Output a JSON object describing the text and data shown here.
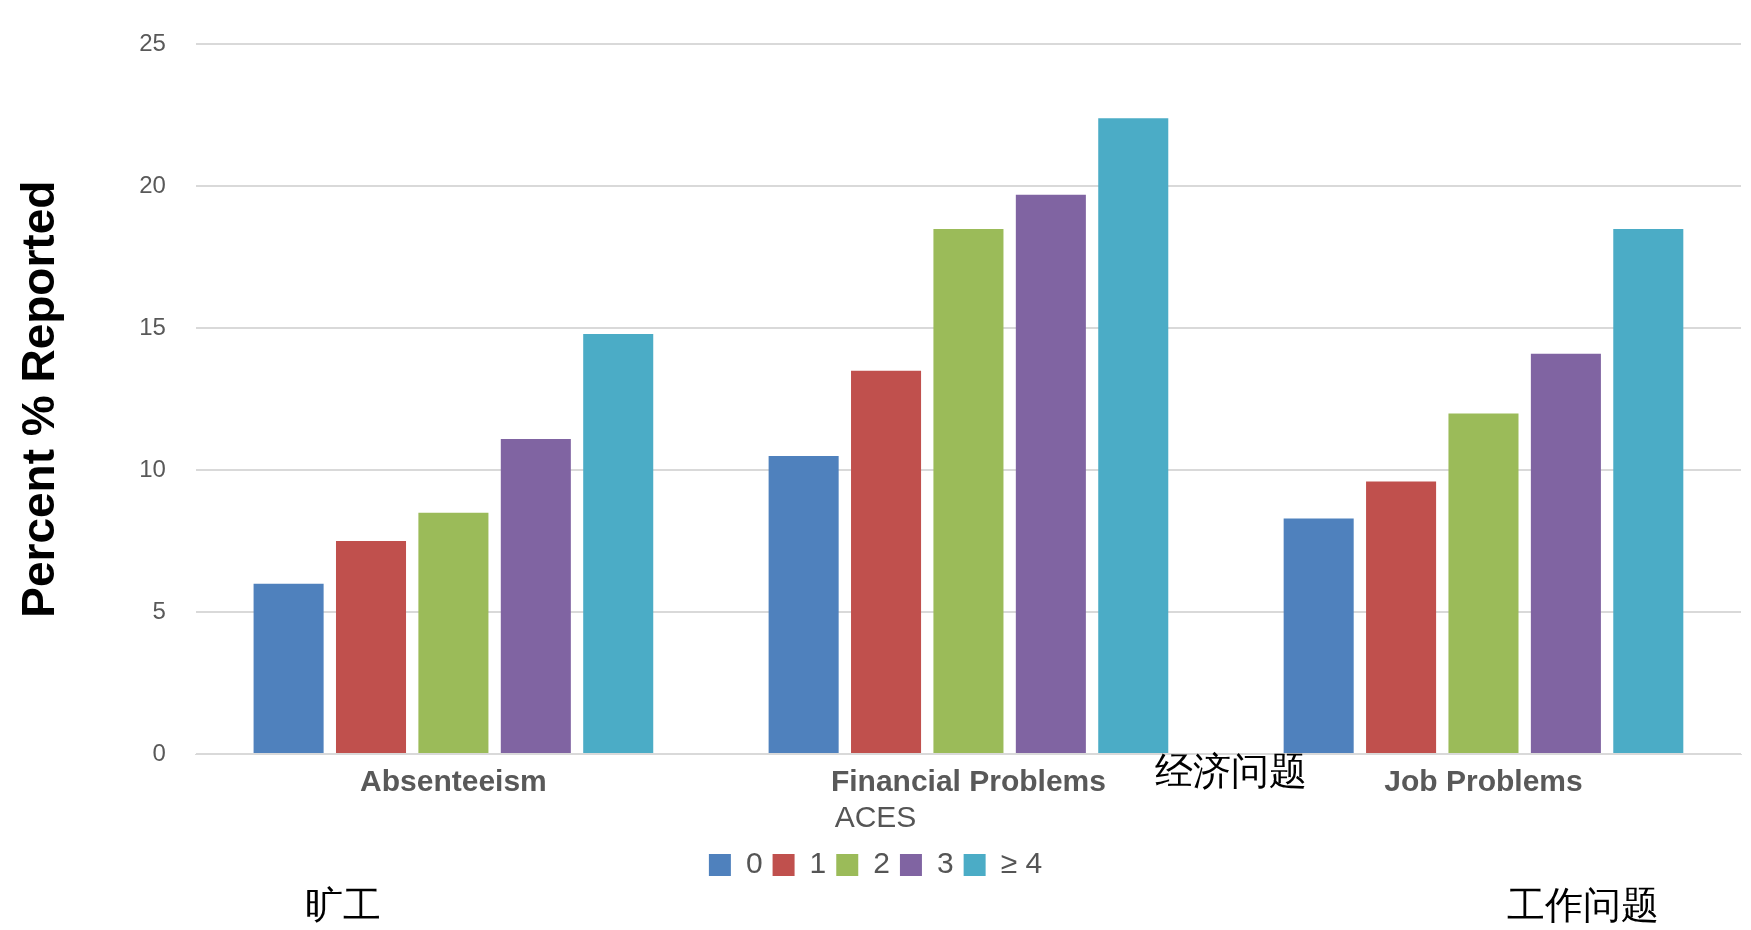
{
  "chart_data": {
    "type": "bar",
    "ylabel": "Percent % Reported",
    "legend_title": "ACES",
    "categories": [
      "Absenteeism",
      "Financial Problems",
      "Job Problems"
    ],
    "series": [
      {
        "name": "0",
        "color": "#4f81bd",
        "values": [
          6.0,
          10.5,
          8.3
        ]
      },
      {
        "name": "1",
        "color": "#c0504d",
        "values": [
          7.5,
          13.5,
          9.6
        ]
      },
      {
        "name": "2",
        "color": "#9bbb59",
        "values": [
          8.5,
          18.5,
          12.0
        ]
      },
      {
        "name": "3",
        "color": "#8064a2",
        "values": [
          11.1,
          19.7,
          14.1
        ]
      },
      {
        "name": "≥ 4",
        "color": "#4bacc6",
        "values": [
          14.8,
          22.4,
          18.5
        ]
      }
    ],
    "ylim": [
      0,
      25
    ],
    "yticks": [
      0,
      5,
      10,
      15,
      20,
      25
    ],
    "grid": "y",
    "legend": "bottom",
    "annotations": [
      "旷工",
      "经济问题",
      "工作问题"
    ]
  }
}
